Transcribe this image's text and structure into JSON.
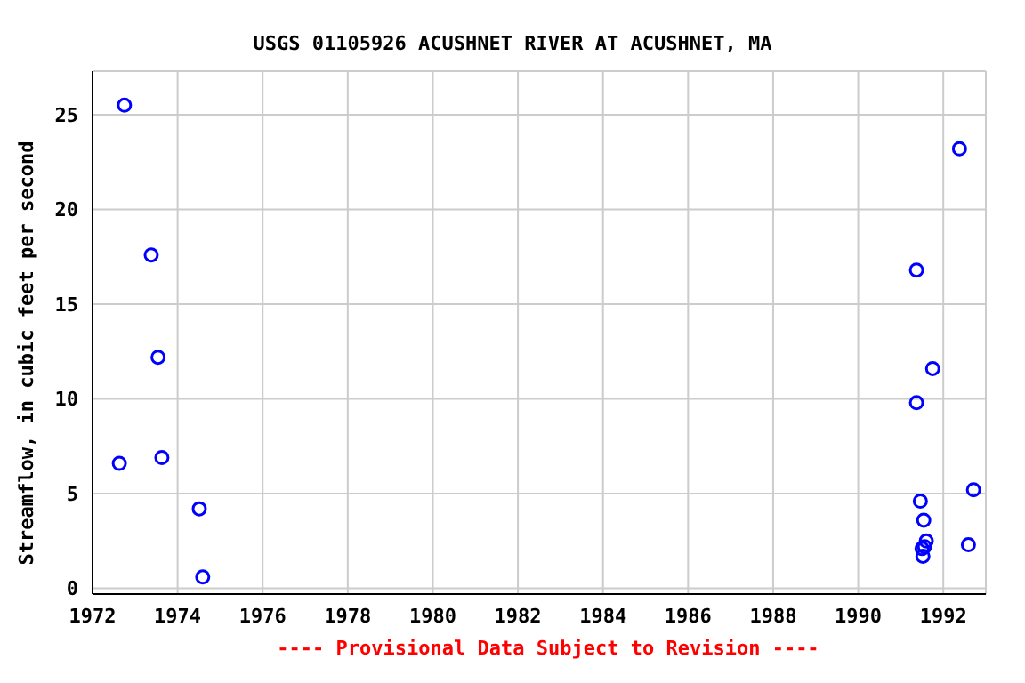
{
  "chart_data": {
    "type": "scatter",
    "title": "USGS 01105926 ACUSHNET RIVER AT ACUSHNET, MA",
    "ylabel": "Streamflow, in cubic feet per second",
    "annotations": [
      "---- Provisional Data Subject to Revision ----"
    ],
    "x": [
      1972.63,
      1972.75,
      1973.38,
      1973.54,
      1973.63,
      1974.51,
      1974.59,
      1991.37,
      1991.37,
      1991.46,
      1991.54,
      1991.5,
      1991.52,
      1991.6,
      1991.56,
      1991.75,
      1992.38,
      1992.59,
      1992.71
    ],
    "series": [
      {
        "color": "#0000ff",
        "values": [
          6.6,
          25.5,
          17.6,
          12.2,
          6.9,
          4.2,
          0.6,
          16.8,
          9.8,
          4.6,
          3.6,
          2.1,
          1.7,
          2.5,
          2.2,
          11.6,
          23.2,
          2.3,
          5.2
        ]
      }
    ],
    "xlim": [
      1972,
      1993
    ],
    "xticks": [
      1972,
      1974,
      1976,
      1978,
      1980,
      1982,
      1984,
      1986,
      1988,
      1990,
      1992
    ],
    "ylim": [
      -0.3,
      27.3
    ],
    "yticks": [
      0,
      5,
      10,
      15,
      20,
      25
    ],
    "grid": true,
    "marker": "circle"
  }
}
